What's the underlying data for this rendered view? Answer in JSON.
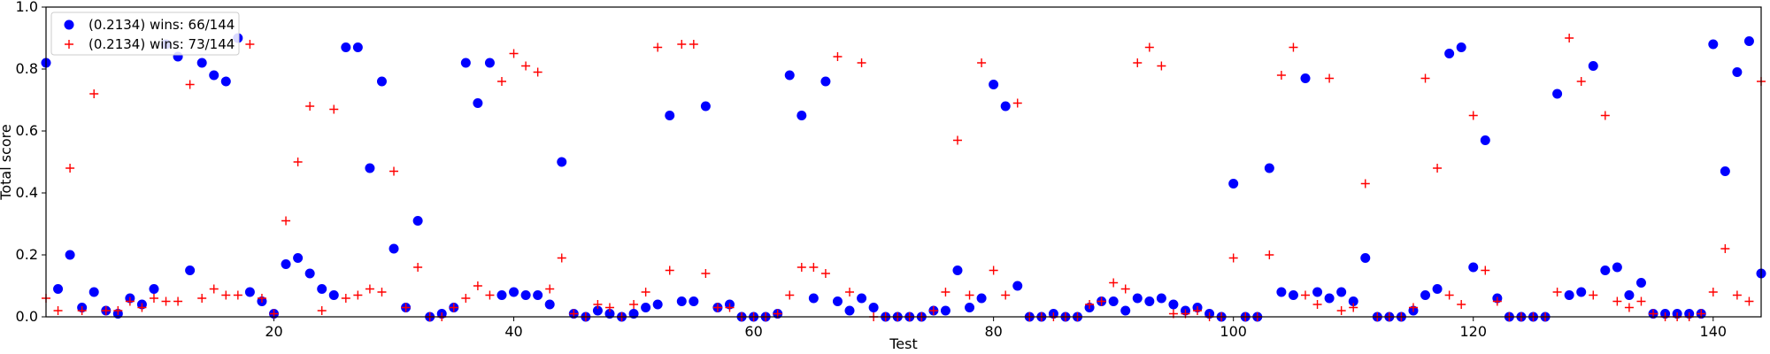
{
  "chart_data": {
    "type": "scatter",
    "title": "",
    "xlabel": "Test",
    "ylabel": "Total score",
    "xlim": [
      1,
      144
    ],
    "ylim": [
      0,
      1.0
    ],
    "xticks": [
      20,
      40,
      60,
      80,
      100,
      120,
      140
    ],
    "yticks": [
      0.0,
      0.2,
      0.4,
      0.6,
      0.8,
      1.0
    ],
    "xtick_labels": [
      "20",
      "40",
      "60",
      "80",
      "100",
      "120",
      "140"
    ],
    "ytick_labels": [
      "0.0",
      "0.2",
      "0.4",
      "0.6",
      "0.8",
      "1.0"
    ],
    "grid": false,
    "legend_position": "top-left",
    "series": [
      {
        "name": "(0.2134) wins: 66/144",
        "marker": "circle",
        "color": "#0000ff",
        "values": [
          0.82,
          0.09,
          0.2,
          0.03,
          0.08,
          0.02,
          0.01,
          0.06,
          0.04,
          0.09,
          0.88,
          0.84,
          0.15,
          0.82,
          0.78,
          0.76,
          0.9,
          0.08,
          0.05,
          0.01,
          0.17,
          0.19,
          0.14,
          0.09,
          0.07,
          0.87,
          0.87,
          0.48,
          0.76,
          0.22,
          0.03,
          0.31,
          0.0,
          0.01,
          0.03,
          0.82,
          0.69,
          0.82,
          0.07,
          0.08,
          0.07,
          0.07,
          0.04,
          0.5,
          0.01,
          0.0,
          0.02,
          0.01,
          0.0,
          0.01,
          0.03,
          0.04,
          0.65,
          0.05,
          0.05,
          0.68,
          0.03,
          0.04,
          0.0,
          0.0,
          0.0,
          0.01,
          0.78,
          0.65,
          0.06,
          0.76,
          0.05,
          0.02,
          0.06,
          0.03,
          0.0,
          0.0,
          0.0,
          0.0,
          0.02,
          0.02,
          0.15,
          0.03,
          0.06,
          0.75,
          0.68,
          0.1,
          0.0,
          0.0,
          0.01,
          0.0,
          0.0,
          0.03,
          0.05,
          0.05,
          0.02,
          0.06,
          0.05,
          0.06,
          0.04,
          0.02,
          0.03,
          0.01,
          0.0,
          0.43,
          0.0,
          0.0,
          0.48,
          0.08,
          0.07,
          0.77,
          0.08,
          0.06,
          0.08,
          0.05,
          0.19,
          0.0,
          0.0,
          0.0,
          0.02,
          0.07,
          0.09,
          0.85,
          0.87,
          0.16,
          0.57,
          0.06,
          0.0,
          0.0,
          0.0,
          0.0,
          0.72,
          0.07,
          0.08,
          0.81,
          0.15,
          0.16,
          0.07,
          0.11,
          0.01,
          0.01,
          0.01,
          0.01,
          0.01,
          0.88,
          0.47,
          0.79,
          0.89,
          0.14
        ]
      },
      {
        "name": "(0.2134) wins: 73/144",
        "marker": "plus",
        "color": "#ff0000",
        "values": [
          0.06,
          0.02,
          0.48,
          0.02,
          0.72,
          0.02,
          0.02,
          0.05,
          0.03,
          0.06,
          0.05,
          0.05,
          0.75,
          0.06,
          0.09,
          0.07,
          0.07,
          0.88,
          0.06,
          0.01,
          0.31,
          0.5,
          0.68,
          0.02,
          0.67,
          0.06,
          0.07,
          0.09,
          0.08,
          0.47,
          0.03,
          0.16,
          0.0,
          0.0,
          0.03,
          0.06,
          0.1,
          0.07,
          0.76,
          0.85,
          0.81,
          0.79,
          0.09,
          0.19,
          0.01,
          0.0,
          0.04,
          0.03,
          0.0,
          0.04,
          0.08,
          0.87,
          0.15,
          0.88,
          0.88,
          0.14,
          0.03,
          0.03,
          0.0,
          0.0,
          0.0,
          0.01,
          0.07,
          0.16,
          0.16,
          0.14,
          0.84,
          0.08,
          0.82,
          0.0,
          0.0,
          0.0,
          0.0,
          0.0,
          0.02,
          0.08,
          0.57,
          0.07,
          0.82,
          0.15,
          0.07,
          0.69,
          0.0,
          0.0,
          0.0,
          0.0,
          0.0,
          0.04,
          0.05,
          0.11,
          0.09,
          0.82,
          0.87,
          0.81,
          0.01,
          0.01,
          0.02,
          0.0,
          0.0,
          0.19,
          0.0,
          0.0,
          0.2,
          0.78,
          0.87,
          0.07,
          0.04,
          0.77,
          0.02,
          0.03,
          0.43,
          0.0,
          0.0,
          0.0,
          0.03,
          0.77,
          0.48,
          0.07,
          0.04,
          0.65,
          0.15,
          0.05,
          0.0,
          0.0,
          0.0,
          0.0,
          0.08,
          0.9,
          0.76,
          0.07,
          0.65,
          0.05,
          0.03,
          0.05,
          0.01,
          0.0,
          0.0,
          0.0,
          0.01,
          0.08,
          0.22,
          0.07,
          0.05,
          0.76
        ]
      }
    ]
  }
}
